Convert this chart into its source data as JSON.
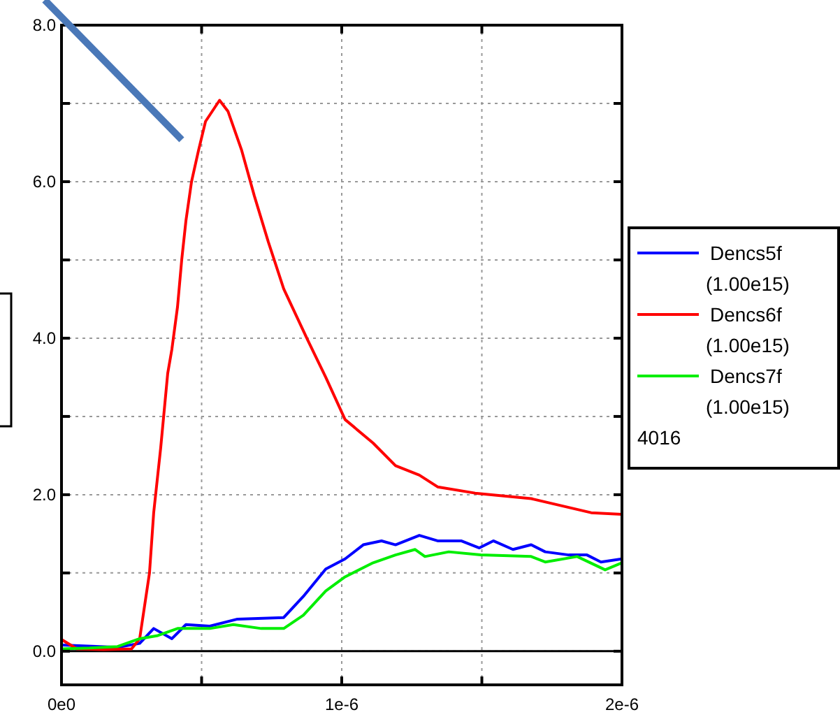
{
  "chart_data": {
    "type": "line",
    "xlim": [
      0,
      2e-06
    ],
    "ylim": [
      -0.43,
      8.0
    ],
    "xticks": [
      {
        "value": 0,
        "label": "0e0"
      },
      {
        "value": 5e-07,
        "label": null
      },
      {
        "value": 1e-06,
        "label": "1e-6"
      },
      {
        "value": 1.5e-06,
        "label": null
      },
      {
        "value": 2e-06,
        "label": "2e-6"
      }
    ],
    "yticks": [
      {
        "value": 0,
        "label": "0.0"
      },
      {
        "value": 1,
        "label": null
      },
      {
        "value": 2,
        "label": "2.0"
      },
      {
        "value": 3,
        "label": null
      },
      {
        "value": 4,
        "label": "4.0"
      },
      {
        "value": 5,
        "label": null
      },
      {
        "value": 6,
        "label": "6.0"
      },
      {
        "value": 7,
        "label": null
      },
      {
        "value": 8,
        "label": "8.0"
      }
    ],
    "grid": true,
    "legend": "right",
    "line_style": "solid",
    "marker": "none",
    "annotations": [
      "4016"
    ],
    "ref_lines": [
      {
        "axis": "y",
        "value": 0,
        "label": null,
        "color": "#000000",
        "line_style": "solid"
      }
    ],
    "series": [
      {
        "name": "Dencs5f (1.00e15)",
        "color": "#0000ff",
        "x": [
          0,
          1e-07,
          2e-07,
          2.79e-07,
          3.29e-07,
          3.94e-07,
          4.44e-07,
          5.29e-07,
          6.28e-07,
          7.93e-07,
          8.63e-07,
          9.43e-07,
          1.012e-06,
          1.077e-06,
          1.142e-06,
          1.192e-06,
          1.277e-06,
          1.342e-06,
          1.426e-06,
          1.491e-06,
          1.541e-06,
          1.611e-06,
          1.676e-06,
          1.726e-06,
          1.81e-06,
          1.875e-06,
          1.925e-06,
          2e-06
        ],
        "values": [
          0.08,
          null,
          0.05,
          0.1,
          0.29,
          0.16,
          0.34,
          0.32,
          0.41,
          0.43,
          0.7,
          1.05,
          1.18,
          1.36,
          1.41,
          1.36,
          1.48,
          1.41,
          1.41,
          1.32,
          1.41,
          1.3,
          1.36,
          1.27,
          1.23,
          1.23,
          1.14,
          1.18
        ]
      },
      {
        "name": "Dencs6f (1.00e15)",
        "color": "#ff0000",
        "x": [
          0,
          5.5e-08,
          1.5e-07,
          2.5e-07,
          2.79e-07,
          3.14e-07,
          3.29e-07,
          3.54e-07,
          3.79e-07,
          3.94e-07,
          4.14e-07,
          4.29e-07,
          4.44e-07,
          4.64e-07,
          4.89e-07,
          5.14e-07,
          5.64e-07,
          5.94e-07,
          6.43e-07,
          6.88e-07,
          7.38e-07,
          7.93e-07,
          8.78e-07,
          9.43e-07,
          1.012e-06,
          1.112e-06,
          1.192e-06,
          1.277e-06,
          1.342e-06,
          1.476e-06,
          1.676e-06,
          1.89e-06,
          2e-06
        ],
        "values": [
          0.15,
          0.03,
          0.02,
          0.03,
          0.16,
          1.0,
          1.77,
          2.6,
          3.55,
          3.86,
          4.4,
          5.0,
          5.5,
          6.0,
          6.4,
          6.77,
          7.04,
          6.9,
          6.4,
          5.82,
          5.23,
          4.63,
          3.98,
          3.5,
          2.96,
          2.66,
          2.37,
          2.25,
          2.1,
          2.02,
          1.95,
          1.77,
          1.75
        ]
      },
      {
        "name": "Dencs7f (1.00e15)",
        "color": "#00ee00",
        "x": [
          0,
          1e-07,
          2e-07,
          2.79e-07,
          3.44e-07,
          4.14e-07,
          5.29e-07,
          6.13e-07,
          7.13e-07,
          7.93e-07,
          8.63e-07,
          9.43e-07,
          1.012e-06,
          1.112e-06,
          1.192e-06,
          1.262e-06,
          1.297e-06,
          1.382e-06,
          1.496e-06,
          1.676e-06,
          1.726e-06,
          1.84e-06,
          1.94e-06,
          2e-06
        ],
        "values": [
          0.03,
          0.04,
          0.06,
          0.16,
          0.2,
          0.29,
          0.29,
          0.34,
          0.29,
          0.29,
          0.46,
          0.77,
          0.95,
          1.13,
          1.23,
          1.3,
          1.21,
          1.27,
          1.23,
          1.21,
          1.14,
          1.21,
          1.04,
          1.13
        ]
      }
    ]
  }
}
